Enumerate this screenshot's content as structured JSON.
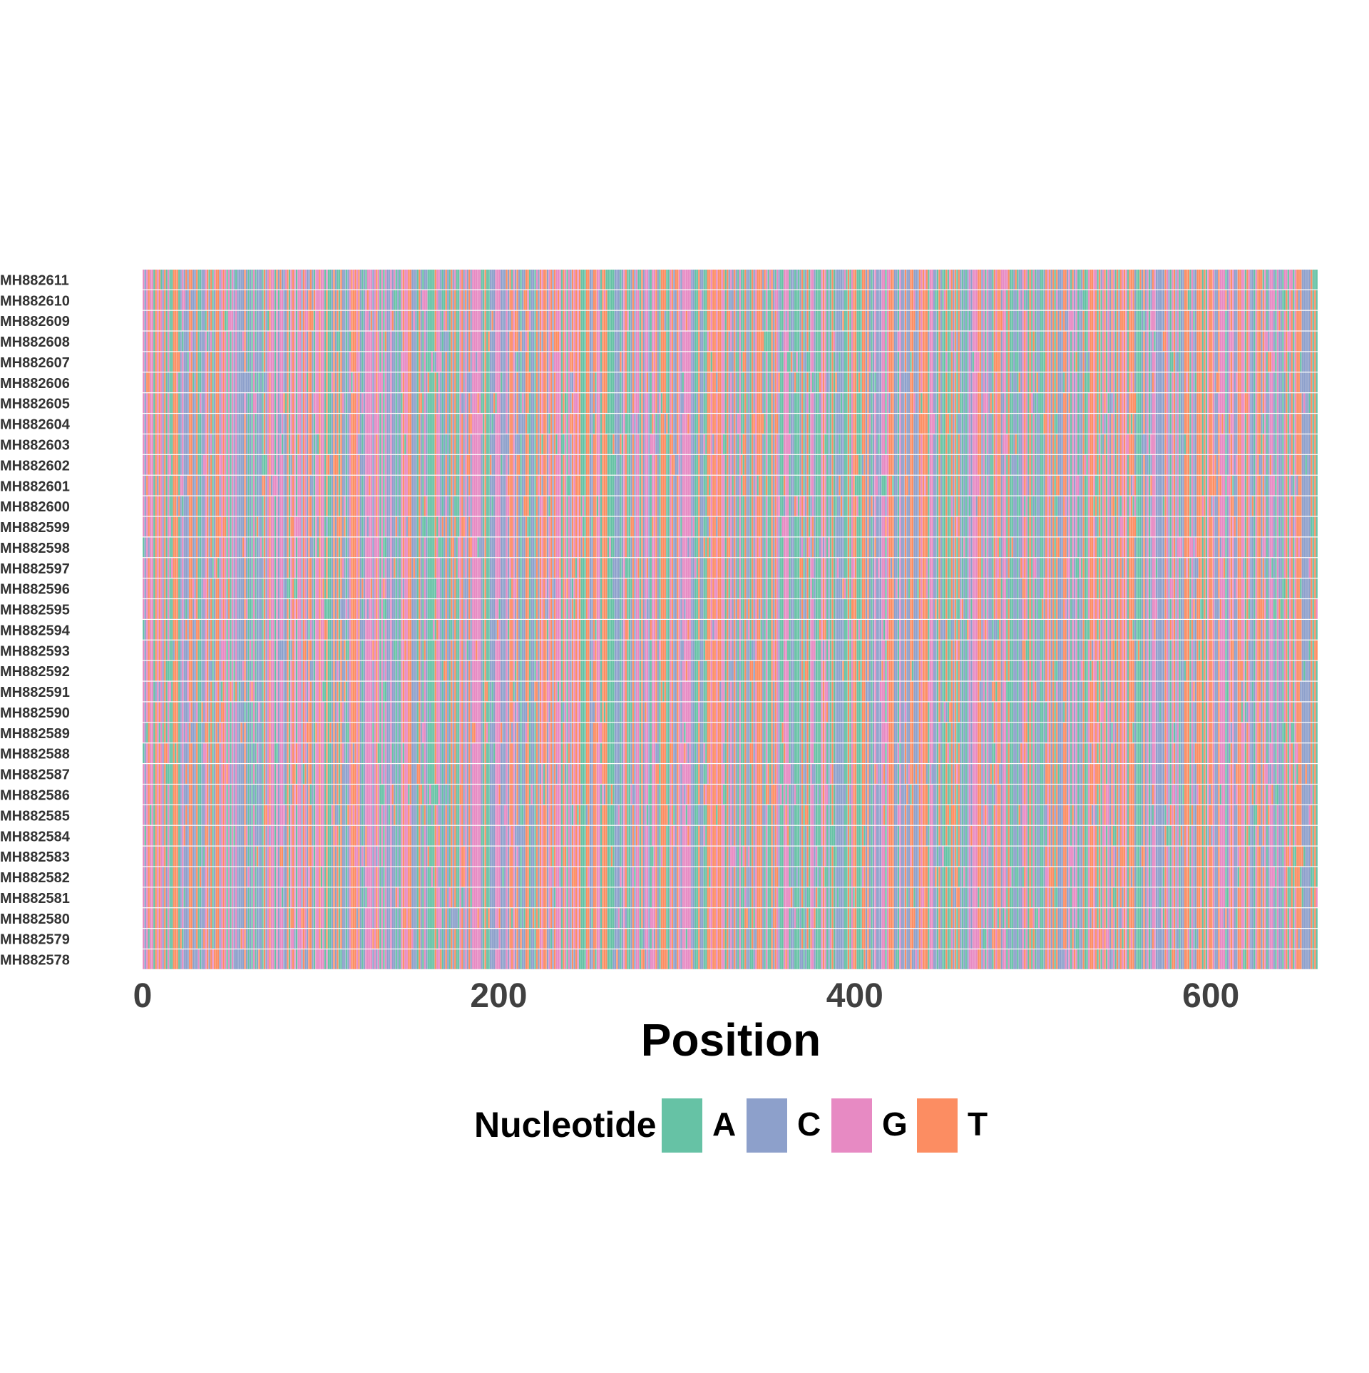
{
  "chart_data": {
    "type": "heatmap",
    "xlabel": "Position",
    "xlim": [
      1,
      660
    ],
    "x_ticks": [
      0,
      200,
      400,
      600
    ],
    "sequence_count": 34,
    "sequence_length": 660,
    "sequences": [
      "MH882611",
      "MH882610",
      "MH882609",
      "MH882608",
      "MH882607",
      "MH882606",
      "MH882605",
      "MH882604",
      "MH882603",
      "MH882602",
      "MH882601",
      "MH882600",
      "MH882599",
      "MH882598",
      "MH882597",
      "MH882596",
      "MH882595",
      "MH882594",
      "MH882593",
      "MH882592",
      "MH882591",
      "MH882590",
      "MH882589",
      "MH882588",
      "MH882587",
      "MH882586",
      "MH882585",
      "MH882584",
      "MH882583",
      "MH882582",
      "MH882581",
      "MH882580",
      "MH882579",
      "MH882578"
    ],
    "legend": {
      "title": "Nucleotide",
      "position": "bottom",
      "items": [
        {
          "label": "A",
          "color": "#66C2A5"
        },
        {
          "label": "C",
          "color": "#8DA0CB"
        },
        {
          "label": "G",
          "color": "#E78AC3"
        },
        {
          "label": "T",
          "color": "#FC8D62"
        }
      ]
    },
    "grid": false
  }
}
